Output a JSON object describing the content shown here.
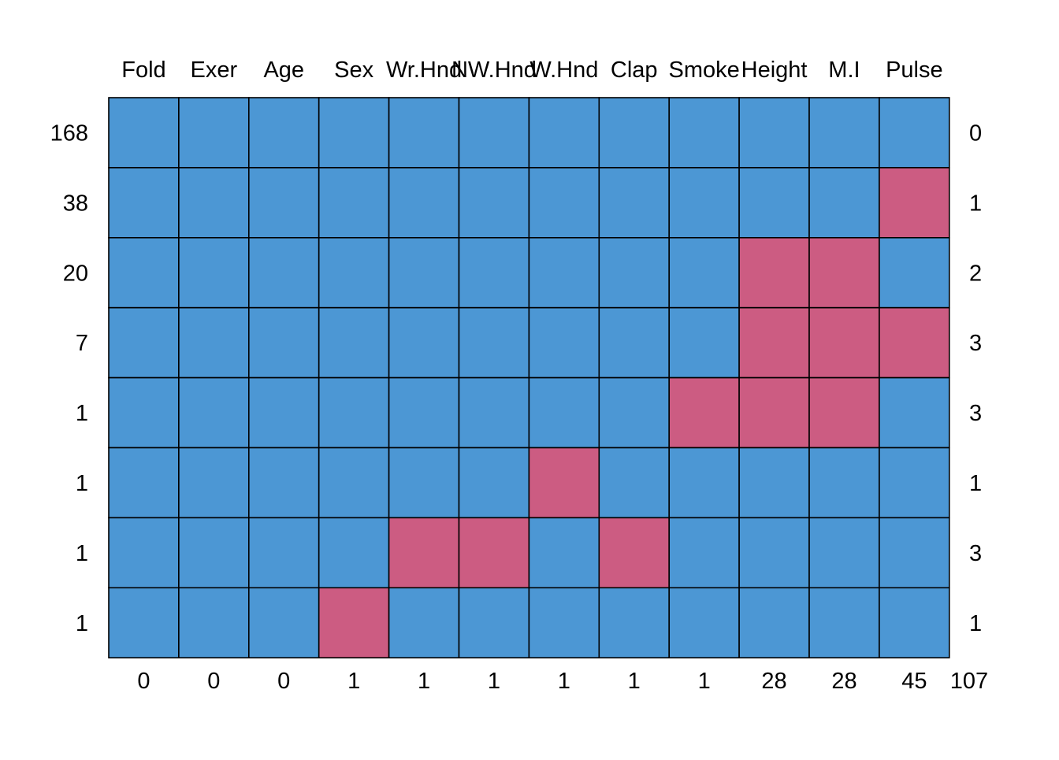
{
  "chart_data": {
    "type": "heatmap",
    "title": "",
    "columns": [
      "Fold",
      "Exer",
      "Age",
      "Sex",
      "Wr.Hnd",
      "NW.Hnd",
      "W.Hnd",
      "Clap",
      "Smoke",
      "Height",
      "M.I",
      "Pulse"
    ],
    "row_counts": [
      "168",
      "38",
      "20",
      "7",
      "1",
      "1",
      "1",
      "1"
    ],
    "row_missing_counts": [
      "0",
      "1",
      "2",
      "3",
      "3",
      "1",
      "3",
      "1"
    ],
    "column_missing_counts": [
      "0",
      "0",
      "0",
      "1",
      "1",
      "1",
      "1",
      "1",
      "1",
      "28",
      "28",
      "45"
    ],
    "total_missing": "107",
    "cells": [
      [
        1,
        1,
        1,
        1,
        1,
        1,
        1,
        1,
        1,
        1,
        1,
        1
      ],
      [
        1,
        1,
        1,
        1,
        1,
        1,
        1,
        1,
        1,
        1,
        1,
        0
      ],
      [
        1,
        1,
        1,
        1,
        1,
        1,
        1,
        1,
        1,
        0,
        0,
        1
      ],
      [
        1,
        1,
        1,
        1,
        1,
        1,
        1,
        1,
        1,
        0,
        0,
        0
      ],
      [
        1,
        1,
        1,
        1,
        1,
        1,
        1,
        1,
        0,
        0,
        0,
        1
      ],
      [
        1,
        1,
        1,
        1,
        1,
        1,
        0,
        1,
        1,
        1,
        1,
        1
      ],
      [
        1,
        1,
        1,
        1,
        0,
        0,
        1,
        0,
        1,
        1,
        1,
        1
      ],
      [
        1,
        1,
        1,
        0,
        1,
        1,
        1,
        1,
        1,
        1,
        1,
        1
      ]
    ],
    "cell_legend": {
      "1": "observed",
      "0": "missing"
    },
    "colors": {
      "observed": "#4c97d4",
      "missing": "#cc5c82",
      "border": "#000000"
    }
  }
}
